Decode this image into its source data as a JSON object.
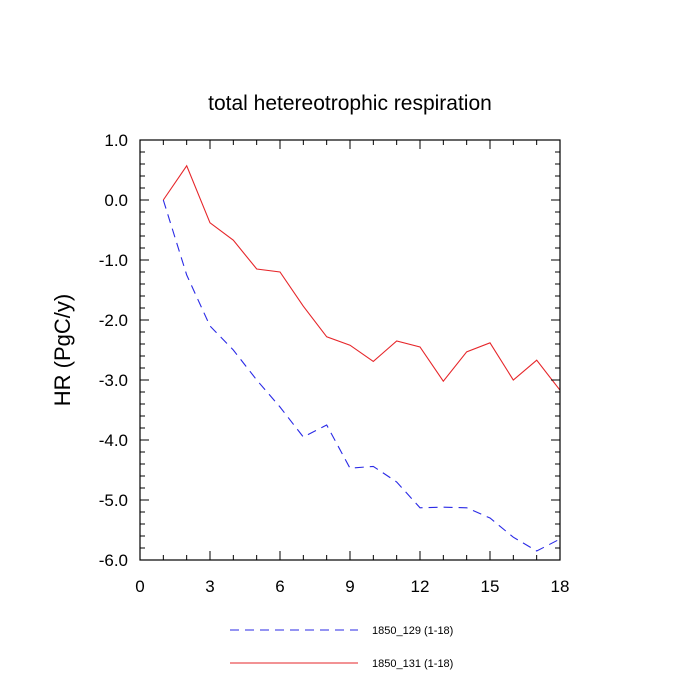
{
  "chart_data": {
    "type": "line",
    "title": "total hetereotrophic respiration",
    "xlabel": "",
    "ylabel": "HR  (PgC/y)",
    "xlim": [
      0,
      18
    ],
    "ylim": [
      -6.0,
      1.0
    ],
    "x_ticks": [
      0,
      3,
      6,
      9,
      12,
      15,
      18
    ],
    "x_tick_labels": [
      "0",
      "3",
      "6",
      "9",
      "12",
      "15",
      "18"
    ],
    "y_ticks": [
      1.0,
      0.0,
      -1.0,
      -2.0,
      -3.0,
      -4.0,
      -5.0,
      -6.0
    ],
    "y_tick_labels": [
      "1.0",
      "0.0",
      "-1.0",
      "-2.0",
      "-3.0",
      "-4.0",
      "-5.0",
      "-6.0"
    ],
    "grid": false,
    "legend_position": "bottom",
    "series": [
      {
        "name": "1850_129 (1-18)",
        "color": "#2a2ae6",
        "style": "dashed",
        "x": [
          1,
          2,
          3,
          4,
          5,
          6,
          7,
          8,
          9,
          10,
          11,
          12,
          13,
          14,
          15,
          16,
          17,
          18
        ],
        "values": [
          0.0,
          -1.25,
          -2.1,
          -2.5,
          -3.0,
          -3.45,
          -3.95,
          -3.75,
          -4.47,
          -4.44,
          -4.7,
          -5.13,
          -5.12,
          -5.13,
          -5.3,
          -5.62,
          -5.85,
          -5.65
        ]
      },
      {
        "name": "1850_131 (1-18)",
        "color": "#e6262a",
        "style": "solid",
        "x": [
          1,
          2,
          3,
          4,
          5,
          6,
          7,
          8,
          9,
          10,
          11,
          12,
          13,
          14,
          15,
          16,
          17,
          18
        ],
        "values": [
          0.0,
          0.57,
          -0.38,
          -0.67,
          -1.15,
          -1.2,
          -1.77,
          -2.28,
          -2.42,
          -2.69,
          -2.35,
          -2.45,
          -3.02,
          -2.53,
          -2.38,
          -3.0,
          -2.67,
          -3.17
        ]
      }
    ]
  }
}
